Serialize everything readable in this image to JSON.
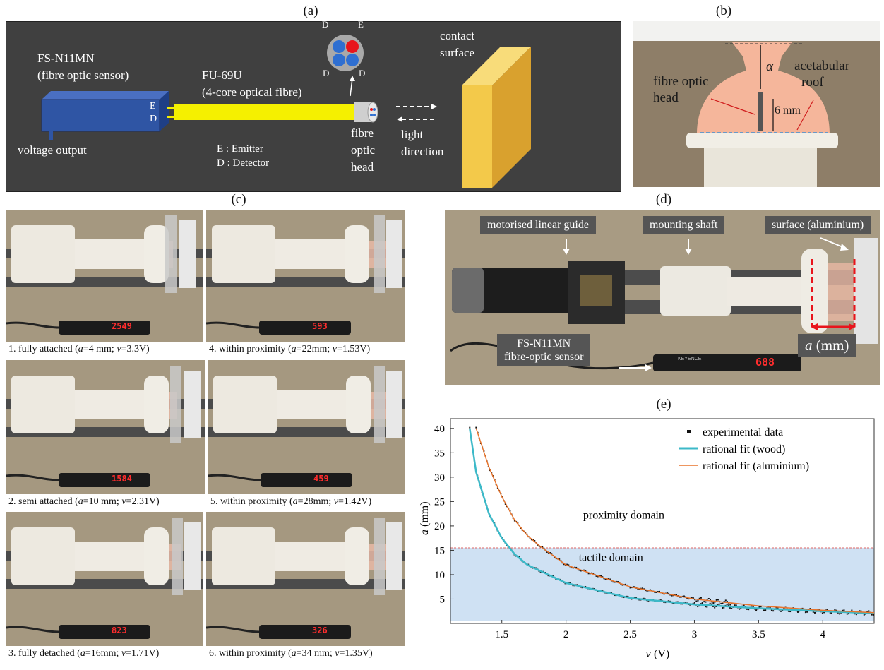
{
  "panels": {
    "a": "(a)",
    "b": "(b)",
    "c": "(c)",
    "d": "(d)",
    "e": "(e)"
  },
  "schematic": {
    "sensor_name": "FS-N11MN",
    "sensor_desc": "(fibre optic sensor)",
    "fibre_name": "FU-69U",
    "fibre_desc": "(4-core optical fibre)",
    "port_e": "E",
    "port_d": "D",
    "voltage_output": "voltage output",
    "legend_e": "E : Emitter",
    "legend_d": "D : Detector",
    "head_line1": "fibre",
    "head_line2": "optic",
    "head_line3": "head",
    "light_line1": "light",
    "light_line2": "direction",
    "contact_line1": "contact",
    "contact_line2": "surface",
    "core_d1": "D",
    "core_e": "E",
    "core_d2": "D",
    "core_d3": "D",
    "colors": {
      "housing": "#2f55a4",
      "fibre": "#f5f000",
      "contact": "#f3c94a",
      "emitter": "#e8141b",
      "detector": "#2f6fd1"
    }
  },
  "photo_b": {
    "fibre_line1": "fibre optic",
    "fibre_line2": "head",
    "roof_line1": "acetabular",
    "roof_line2": "roof",
    "alpha": "α",
    "dim": "6 mm"
  },
  "states": [
    {
      "cap_pre": "1. fully attached (",
      "a": "4 mm",
      "v": "3.3V",
      "display": "2549"
    },
    {
      "cap_pre": "4. within proximity (",
      "a": "22mm",
      "v": "1.53V",
      "display": "593"
    },
    {
      "cap_pre": "2. semi attached (",
      "a": "10 mm",
      "v": "2.31V",
      "display": "1584"
    },
    {
      "cap_pre": "5. within proximity (",
      "a": "28mm",
      "v": "1.42V",
      "display": "459"
    },
    {
      "cap_pre": "3. fully detached (",
      "a": "16mm",
      "v": "1.71V",
      "display": "823"
    },
    {
      "cap_pre": "6. within proximity (",
      "a": "34 mm",
      "v": "1.35V",
      "display": "326"
    }
  ],
  "setup": {
    "guide": "motorised linear guide",
    "shaft": "mounting shaft",
    "surface": "surface (aluminium)",
    "sensor_line1": "FS-N11MN",
    "sensor_line2": "fibre-optic sensor",
    "a_label": "a",
    "a_unit": " (mm)",
    "display": "688",
    "brand": "KEYENCE"
  },
  "chart_data": {
    "type": "scatter",
    "xlabel_var": "v",
    "xlabel_unit": " (V)",
    "ylabel_var": "a",
    "ylabel_unit": " (mm)",
    "xlim": [
      1.1,
      4.4
    ],
    "ylim": [
      0,
      42
    ],
    "xticks": [
      "1.5",
      "2",
      "2.5",
      "3",
      "3.5",
      "4"
    ],
    "yticks": [
      "5",
      "10",
      "15",
      "20",
      "25",
      "30",
      "35",
      "40"
    ],
    "legend": [
      "experimental data",
      "rational fit (wood)",
      "rational fit (aluminium)"
    ],
    "regions": [
      {
        "label": "tactile domain",
        "y_range": [
          0.5,
          15.5
        ],
        "color": "#cfe1f3"
      }
    ],
    "annotations": [
      "proximity domain"
    ],
    "series": [
      {
        "name": "rational fit (wood)",
        "color": "#3cb9c8",
        "x": [
          1.25,
          1.3,
          1.4,
          1.5,
          1.6,
          1.7,
          2.0,
          2.5,
          3.0,
          3.5,
          4.0,
          4.4
        ],
        "y": [
          40,
          31,
          22.5,
          17.5,
          14.2,
          12,
          8.3,
          5.2,
          3.9,
          3.1,
          2.5,
          2.1
        ]
      },
      {
        "name": "rational fit (aluminium)",
        "color": "#e8742c",
        "x": [
          1.3,
          1.4,
          1.5,
          1.6,
          1.7,
          1.8,
          2.0,
          2.5,
          3.0,
          3.5,
          4.0,
          4.4
        ],
        "y": [
          40,
          32,
          26,
          21.2,
          18,
          15.8,
          12,
          7.5,
          5.0,
          3.6,
          2.7,
          2.2
        ]
      }
    ],
    "grid": false,
    "legend_position": "top-right"
  }
}
